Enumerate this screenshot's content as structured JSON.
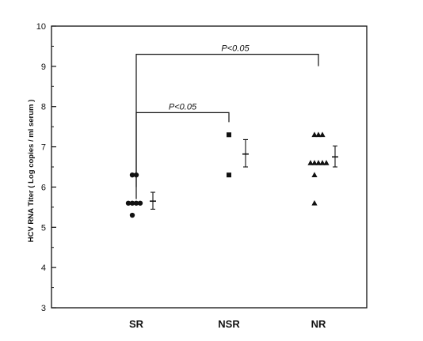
{
  "chart_data": {
    "type": "scatter",
    "title": "",
    "xlabel": "",
    "ylabel": "HCV RNA Titer ( Log copies / ml serum )",
    "ylim": [
      3,
      10
    ],
    "yticks": [
      3,
      4,
      5,
      6,
      7,
      8,
      9,
      10
    ],
    "grid": false,
    "categories": [
      "SR",
      "NSR",
      "NR"
    ],
    "series": [
      {
        "category": "SR",
        "marker": "circle",
        "points": [
          {
            "offset": -1,
            "y": 6.3
          },
          {
            "offset": 0,
            "y": 6.3
          },
          {
            "offset": -2,
            "y": 5.6
          },
          {
            "offset": -1,
            "y": 5.6
          },
          {
            "offset": 0,
            "y": 5.6
          },
          {
            "offset": 1,
            "y": 5.6
          },
          {
            "offset": -1,
            "y": 5.3
          }
        ],
        "mean": 5.65,
        "error": [
          5.45,
          5.87
        ]
      },
      {
        "category": "NSR",
        "marker": "square",
        "points": [
          {
            "offset": 0,
            "y": 7.3
          },
          {
            "offset": 0,
            "y": 6.3
          }
        ],
        "mean": 6.82,
        "error": [
          6.5,
          7.18
        ]
      },
      {
        "category": "NR",
        "marker": "triangle",
        "points": [
          {
            "offset": -1,
            "y": 7.3
          },
          {
            "offset": 0,
            "y": 7.3
          },
          {
            "offset": 1,
            "y": 7.3
          },
          {
            "offset": -2,
            "y": 6.6
          },
          {
            "offset": -1,
            "y": 6.6
          },
          {
            "offset": 0,
            "y": 6.6
          },
          {
            "offset": 1,
            "y": 6.6
          },
          {
            "offset": 2,
            "y": 6.6
          },
          {
            "offset": -1,
            "y": 6.3
          },
          {
            "offset": -1,
            "y": 5.6
          }
        ],
        "mean": 6.75,
        "error": [
          6.5,
          7.02
        ]
      }
    ],
    "annotations": [
      {
        "text": "P<0.05",
        "from": "SR",
        "to": "NR",
        "y": 9.3
      },
      {
        "text": "P<0.05",
        "from": "SR",
        "to": "NSR",
        "y": 7.85
      }
    ]
  }
}
